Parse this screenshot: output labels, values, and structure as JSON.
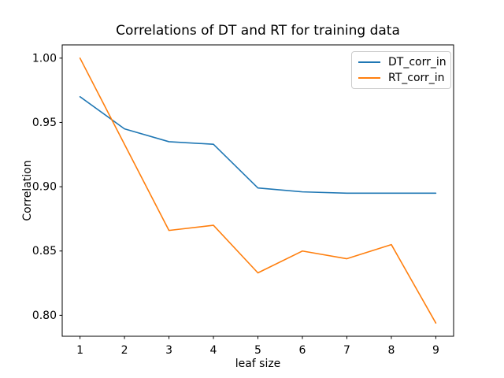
{
  "chart_data": {
    "type": "line",
    "title": "Correlations of DT and RT for training data",
    "xlabel": "leaf size",
    "ylabel": "Correlation",
    "x": [
      1,
      2,
      3,
      4,
      5,
      6,
      7,
      8,
      9
    ],
    "series": [
      {
        "name": "DT_corr_in",
        "color": "#1f77b4",
        "values": [
          0.97,
          0.945,
          0.935,
          0.933,
          0.899,
          0.896,
          0.895,
          0.895,
          0.895
        ]
      },
      {
        "name": "RT_corr_in",
        "color": "#ff7f0e",
        "values": [
          1.0,
          0.933,
          0.866,
          0.87,
          0.833,
          0.85,
          0.844,
          0.855,
          0.794
        ]
      }
    ],
    "xticks": [
      1,
      2,
      3,
      4,
      5,
      6,
      7,
      8,
      9
    ],
    "yticks": [
      0.8,
      0.85,
      0.9,
      0.95,
      1.0
    ],
    "ytick_decimals": 2,
    "xlim": [
      0.6,
      9.4
    ],
    "ylim": [
      0.7837,
      1.0103
    ],
    "grid": false,
    "legend_position": "upper right",
    "axis_color": "#000000",
    "background_color": "#ffffff"
  }
}
